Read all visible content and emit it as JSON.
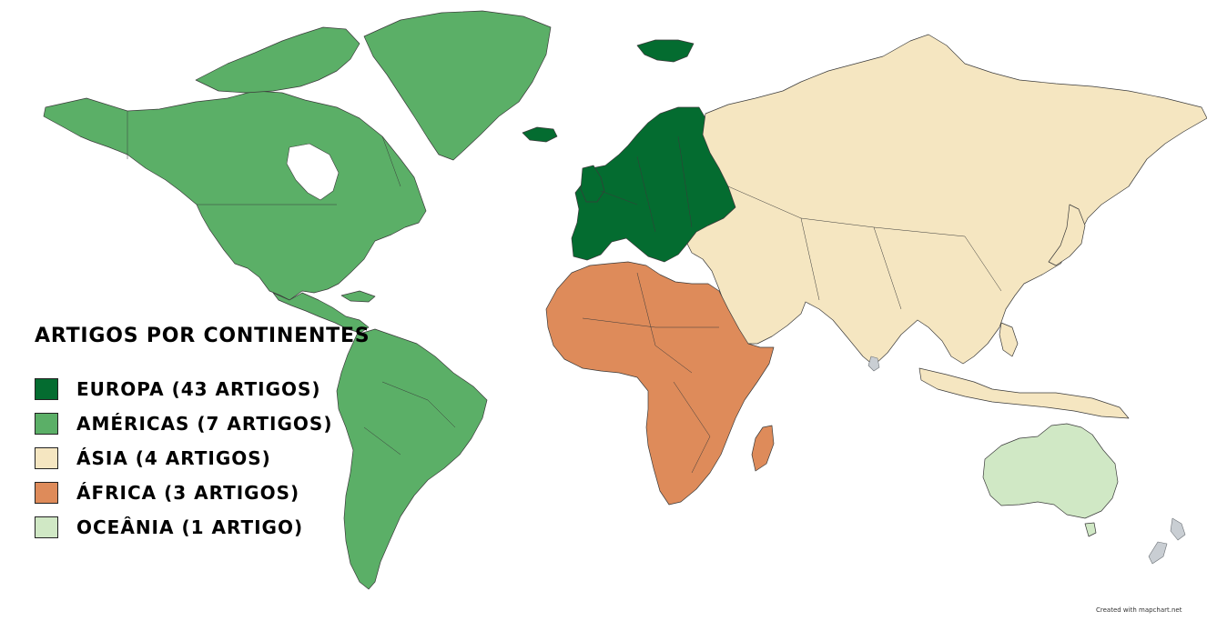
{
  "legend": {
    "title": "ARTIGOS POR CONTINENTES",
    "items": [
      {
        "label": "EUROPA (43 ARTIGOS)",
        "region": "europe",
        "color": "#046c30",
        "articles": 43
      },
      {
        "label": "AMÉRICAS (7 ARTIGOS)",
        "region": "americas",
        "color": "#5baf67",
        "articles": 7
      },
      {
        "label": "ÁSIA (4 ARTIGOS)",
        "region": "asia",
        "color": "#f5e6c1",
        "articles": 4
      },
      {
        "label": "ÁFRICA (3 ARTIGOS)",
        "region": "africa",
        "color": "#de8b5a",
        "articles": 3
      },
      {
        "label": "OCEÂNIA (1 ARTIGO)",
        "region": "oceania",
        "color": "#d0e8c5",
        "articles": 1
      }
    ]
  },
  "credit": "Created with mapchart.net",
  "colors": {
    "background": "#ffffff",
    "unassigned": "#c9ced3"
  }
}
